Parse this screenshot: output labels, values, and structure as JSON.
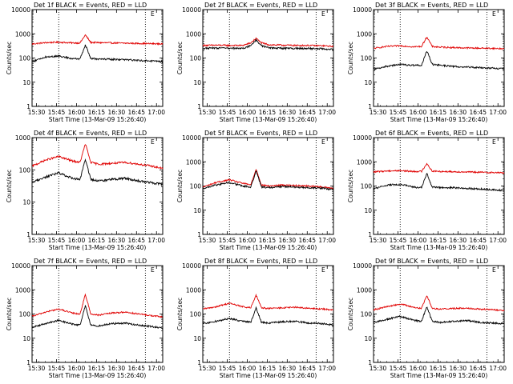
{
  "chart_data": [
    {
      "type": "line",
      "title": "Det 1f BLACK = Events, RED = LLD",
      "xlabel": "Start Time (13-Mar-09 15:26:40)",
      "ylabel": "Counts/sec",
      "yscale": "log",
      "ylim": [
        1,
        10000
      ],
      "ytick_labels": [
        "1",
        "10",
        "100",
        "1000",
        "10000"
      ],
      "xlim_minutes": [
        0,
        98
      ],
      "xtick_labels": [
        "15:30",
        "15:45",
        "16:00",
        "16:15",
        "16:30",
        "16:45",
        "17:00"
      ],
      "xtick_minutes": [
        3.33,
        18.33,
        33.33,
        48.33,
        63.33,
        78.33,
        93.33
      ],
      "vlines_minutes": [
        20,
        85
      ],
      "marker": "E",
      "series": [
        {
          "name": "LLD",
          "color": "#e00000",
          "t": [
            0,
            10,
            20,
            30,
            36,
            40,
            44,
            50,
            60,
            70,
            80,
            90,
            98
          ],
          "v": [
            380,
            430,
            450,
            420,
            420,
            900,
            440,
            430,
            420,
            410,
            400,
            390,
            380
          ]
        },
        {
          "name": "Events",
          "color": "#000000",
          "t": [
            0,
            10,
            20,
            30,
            36,
            40,
            44,
            50,
            60,
            70,
            80,
            90,
            98
          ],
          "v": [
            70,
            110,
            120,
            95,
            90,
            350,
            95,
            90,
            88,
            85,
            80,
            75,
            70
          ]
        }
      ]
    },
    {
      "type": "line",
      "title": "Det 2f BLACK = Events, RED = LLD",
      "xlabel": "Start Time (13-Mar-09 15:26:40)",
      "ylabel": "Counts/sec",
      "yscale": "log",
      "ylim": [
        1,
        10000
      ],
      "ytick_labels": [
        "1",
        "10",
        "100",
        "1000",
        "10000"
      ],
      "xlim_minutes": [
        0,
        98
      ],
      "xtick_labels": [
        "15:30",
        "15:45",
        "16:00",
        "16:15",
        "16:30",
        "16:45",
        "17:00"
      ],
      "xtick_minutes": [
        3.33,
        18.33,
        33.33,
        48.33,
        63.33,
        78.33,
        93.33
      ],
      "vlines_minutes": [
        20,
        85
      ],
      "marker": "E",
      "series": [
        {
          "name": "LLD",
          "color": "#e00000",
          "t": [
            0,
            10,
            20,
            30,
            36,
            40,
            44,
            50,
            60,
            70,
            80,
            90,
            98
          ],
          "v": [
            330,
            340,
            330,
            330,
            420,
            650,
            420,
            350,
            340,
            330,
            330,
            320,
            300
          ]
        },
        {
          "name": "Events",
          "color": "#000000",
          "t": [
            0,
            10,
            20,
            30,
            36,
            40,
            44,
            50,
            60,
            70,
            80,
            90,
            98
          ],
          "v": [
            250,
            260,
            250,
            250,
            320,
            550,
            320,
            260,
            250,
            250,
            245,
            240,
            220
          ]
        }
      ]
    },
    {
      "type": "line",
      "title": "Det 3f BLACK = Events, RED = LLD",
      "xlabel": "Start Time (13-Mar-09 15:26:40)",
      "ylabel": "Counts/sec",
      "yscale": "log",
      "ylim": [
        1,
        10000
      ],
      "ytick_labels": [
        "1",
        "10",
        "100",
        "1000",
        "10000"
      ],
      "xlim_minutes": [
        0,
        98
      ],
      "xtick_labels": [
        "15:30",
        "15:45",
        "16:00",
        "16:15",
        "16:30",
        "16:45",
        "17:00"
      ],
      "xtick_minutes": [
        3.33,
        18.33,
        33.33,
        48.33,
        63.33,
        78.33,
        93.33
      ],
      "vlines_minutes": [
        20,
        85
      ],
      "marker": "E",
      "series": [
        {
          "name": "LLD",
          "color": "#e00000",
          "t": [
            0,
            10,
            20,
            30,
            36,
            40,
            44,
            50,
            60,
            70,
            80,
            90,
            98
          ],
          "v": [
            250,
            300,
            320,
            290,
            300,
            750,
            300,
            280,
            270,
            260,
            255,
            250,
            240
          ]
        },
        {
          "name": "Events",
          "color": "#000000",
          "t": [
            0,
            10,
            20,
            30,
            36,
            40,
            44,
            50,
            60,
            70,
            80,
            90,
            98
          ],
          "v": [
            35,
            45,
            55,
            50,
            50,
            200,
            55,
            50,
            45,
            42,
            40,
            38,
            35
          ]
        }
      ]
    },
    {
      "type": "line",
      "title": "Det 4f BLACK = Events, RED = LLD",
      "xlabel": "Start Time (13-Mar-09 15:26:40)",
      "ylabel": "Counts/sec",
      "yscale": "log",
      "ylim": [
        1,
        1000
      ],
      "ytick_labels": [
        "1",
        "10",
        "100",
        "1000"
      ],
      "xlim_minutes": [
        0,
        98
      ],
      "xtick_labels": [
        "15:30",
        "15:45",
        "16:00",
        "16:15",
        "16:30",
        "16:45",
        "17:00"
      ],
      "xtick_minutes": [
        3.33,
        18.33,
        33.33,
        48.33,
        63.33,
        78.33,
        93.33
      ],
      "vlines_minutes": [
        20,
        85
      ],
      "marker": "E",
      "series": [
        {
          "name": "LLD",
          "color": "#e00000",
          "t": [
            0,
            10,
            20,
            30,
            36,
            40,
            44,
            50,
            60,
            70,
            80,
            90,
            98
          ],
          "v": [
            130,
            200,
            260,
            190,
            170,
            650,
            170,
            150,
            160,
            170,
            150,
            130,
            110
          ]
        },
        {
          "name": "Events",
          "color": "#000000",
          "t": [
            0,
            10,
            20,
            30,
            36,
            40,
            44,
            50,
            60,
            70,
            80,
            90,
            98
          ],
          "v": [
            40,
            60,
            80,
            55,
            50,
            220,
            50,
            45,
            50,
            55,
            45,
            40,
            35
          ]
        }
      ]
    },
    {
      "type": "line",
      "title": "Det 5f BLACK = Events, RED = LLD",
      "xlabel": "Start Time (13-Mar-09 15:26:40)",
      "ylabel": "Counts/sec",
      "yscale": "log",
      "ylim": [
        1,
        10000
      ],
      "ytick_labels": [
        "1",
        "10",
        "100",
        "1000",
        "10000"
      ],
      "xlim_minutes": [
        0,
        98
      ],
      "xtick_labels": [
        "15:30",
        "15:45",
        "16:00",
        "16:15",
        "16:30",
        "16:45",
        "17:00"
      ],
      "xtick_minutes": [
        3.33,
        18.33,
        33.33,
        48.33,
        63.33,
        78.33,
        93.33
      ],
      "vlines_minutes": [
        20,
        85
      ],
      "marker": "E",
      "series": [
        {
          "name": "LLD",
          "color": "#e00000",
          "t": [
            0,
            10,
            20,
            30,
            36,
            40,
            44,
            50,
            60,
            70,
            80,
            90,
            98
          ],
          "v": [
            90,
            140,
            180,
            130,
            110,
            500,
            110,
            100,
            110,
            105,
            100,
            90,
            80
          ]
        },
        {
          "name": "Events",
          "color": "#000000",
          "t": [
            0,
            10,
            20,
            30,
            36,
            40,
            44,
            50,
            60,
            70,
            80,
            90,
            98
          ],
          "v": [
            80,
            110,
            140,
            100,
            90,
            420,
            90,
            85,
            95,
            90,
            85,
            80,
            70
          ]
        }
      ]
    },
    {
      "type": "line",
      "title": "Det 6f BLACK = Events, RED = LLD",
      "xlabel": "Start Time (13-Mar-09 15:26:40)",
      "ylabel": "Counts/sec",
      "yscale": "log",
      "ylim": [
        1,
        10000
      ],
      "ytick_labels": [
        "1",
        "10",
        "100",
        "1000",
        "10000"
      ],
      "xlim_minutes": [
        0,
        98
      ],
      "xtick_labels": [
        "15:30",
        "15:45",
        "16:00",
        "16:15",
        "16:30",
        "16:45",
        "17:00"
      ],
      "xtick_minutes": [
        3.33,
        18.33,
        33.33,
        48.33,
        63.33,
        78.33,
        93.33
      ],
      "vlines_minutes": [
        20,
        85
      ],
      "marker": "E",
      "series": [
        {
          "name": "LLD",
          "color": "#e00000",
          "t": [
            0,
            10,
            20,
            30,
            36,
            40,
            44,
            50,
            60,
            70,
            80,
            90,
            98
          ],
          "v": [
            380,
            420,
            430,
            400,
            400,
            850,
            410,
            400,
            390,
            380,
            370,
            360,
            350
          ]
        },
        {
          "name": "Events",
          "color": "#000000",
          "t": [
            0,
            10,
            20,
            30,
            36,
            40,
            44,
            50,
            60,
            70,
            80,
            90,
            98
          ],
          "v": [
            75,
            110,
            115,
            90,
            85,
            330,
            90,
            85,
            85,
            80,
            75,
            70,
            65
          ]
        }
      ]
    },
    {
      "type": "line",
      "title": "Det 7f BLACK = Events, RED = LLD",
      "xlabel": "Start Time (13-Mar-09 15:26:40)",
      "ylabel": "Counts/sec",
      "yscale": "log",
      "ylim": [
        1,
        10000
      ],
      "ytick_labels": [
        "1",
        "10",
        "100",
        "1000",
        "10000"
      ],
      "xlim_minutes": [
        0,
        98
      ],
      "xtick_labels": [
        "15:30",
        "15:45",
        "16:00",
        "16:15",
        "16:30",
        "16:45",
        "17:00"
      ],
      "xtick_minutes": [
        3.33,
        18.33,
        33.33,
        48.33,
        63.33,
        78.33,
        93.33
      ],
      "vlines_minutes": [
        20,
        85
      ],
      "marker": "E",
      "series": [
        {
          "name": "LLD",
          "color": "#e00000",
          "t": [
            0,
            10,
            20,
            30,
            36,
            40,
            44,
            50,
            60,
            70,
            80,
            90,
            98
          ],
          "v": [
            80,
            120,
            160,
            110,
            100,
            650,
            100,
            90,
            110,
            120,
            100,
            85,
            75
          ]
        },
        {
          "name": "Events",
          "color": "#000000",
          "t": [
            0,
            10,
            20,
            30,
            36,
            40,
            44,
            50,
            60,
            70,
            80,
            90,
            98
          ],
          "v": [
            28,
            40,
            55,
            38,
            35,
            220,
            35,
            32,
            40,
            42,
            35,
            30,
            26
          ]
        }
      ]
    },
    {
      "type": "line",
      "title": "Det 8f BLACK = Events, RED = LLD",
      "xlabel": "Start Time (13-Mar-09 15:26:40)",
      "ylabel": "Counts/sec",
      "yscale": "log",
      "ylim": [
        1,
        10000
      ],
      "ytick_labels": [
        "1",
        "10",
        "100",
        "1000",
        "10000"
      ],
      "xlim_minutes": [
        0,
        98
      ],
      "xtick_labels": [
        "15:30",
        "15:45",
        "16:00",
        "16:15",
        "16:30",
        "16:45",
        "17:00"
      ],
      "xtick_minutes": [
        3.33,
        18.33,
        33.33,
        48.33,
        63.33,
        78.33,
        93.33
      ],
      "vlines_minutes": [
        20,
        85
      ],
      "marker": "E",
      "series": [
        {
          "name": "LLD",
          "color": "#e00000",
          "t": [
            0,
            10,
            20,
            30,
            36,
            40,
            44,
            50,
            60,
            70,
            80,
            90,
            98
          ],
          "v": [
            160,
            200,
            280,
            200,
            180,
            600,
            180,
            170,
            180,
            190,
            170,
            160,
            150
          ]
        },
        {
          "name": "Events",
          "color": "#000000",
          "t": [
            0,
            10,
            20,
            30,
            36,
            40,
            44,
            50,
            60,
            70,
            80,
            90,
            98
          ],
          "v": [
            40,
            50,
            65,
            50,
            45,
            180,
            45,
            42,
            48,
            50,
            42,
            40,
            35
          ]
        }
      ]
    },
    {
      "type": "line",
      "title": "Det 9f BLACK = Events, RED = LLD",
      "xlabel": "Start Time (13-Mar-09 15:26:40)",
      "ylabel": "Counts/sec",
      "yscale": "log",
      "ylim": [
        1,
        10000
      ],
      "ytick_labels": [
        "1",
        "10",
        "100",
        "1000",
        "10000"
      ],
      "xlim_minutes": [
        0,
        98
      ],
      "xtick_labels": [
        "15:30",
        "15:45",
        "16:00",
        "16:15",
        "16:30",
        "16:45",
        "17:00"
      ],
      "xtick_minutes": [
        3.33,
        18.33,
        33.33,
        48.33,
        63.33,
        78.33,
        93.33
      ],
      "vlines_minutes": [
        20,
        85
      ],
      "marker": "E",
      "series": [
        {
          "name": "LLD",
          "color": "#e00000",
          "t": [
            0,
            10,
            20,
            30,
            36,
            40,
            44,
            50,
            60,
            70,
            80,
            90,
            98
          ],
          "v": [
            150,
            200,
            260,
            190,
            170,
            600,
            170,
            160,
            170,
            175,
            160,
            150,
            140
          ]
        },
        {
          "name": "Events",
          "color": "#000000",
          "t": [
            0,
            10,
            20,
            30,
            36,
            40,
            44,
            50,
            60,
            70,
            80,
            90,
            98
          ],
          "v": [
            45,
            60,
            80,
            55,
            50,
            200,
            50,
            45,
            50,
            55,
            45,
            42,
            40
          ]
        }
      ]
    }
  ]
}
